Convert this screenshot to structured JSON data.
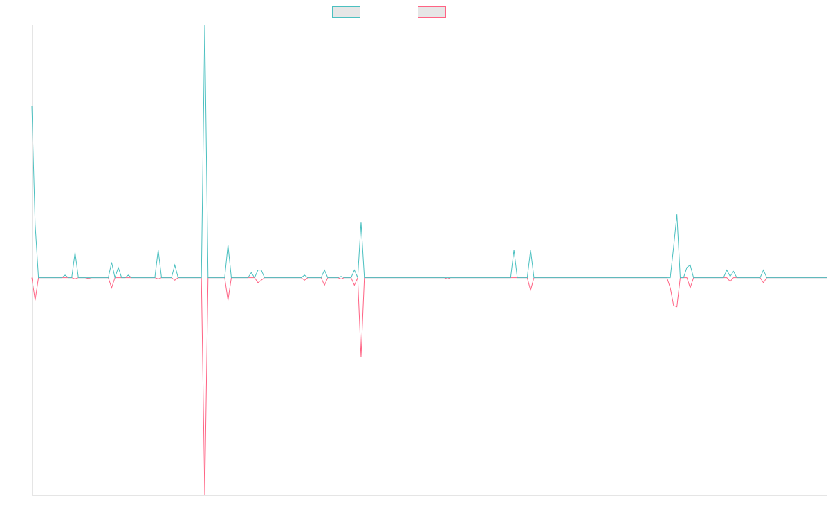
{
  "chart_data": {
    "type": "line",
    "ylim": [
      -86,
      100
    ],
    "series": [
      {
        "color": "#4bc0c0",
        "values": [
          68,
          21,
          0,
          0,
          0,
          0,
          0,
          0,
          0,
          0,
          1,
          0,
          0,
          10,
          0,
          0,
          0,
          0,
          0,
          0,
          0,
          0,
          0,
          0,
          6,
          0,
          4,
          0,
          0,
          1,
          0,
          0,
          0,
          0,
          0,
          0,
          0,
          0,
          11,
          0,
          0,
          0,
          0,
          5,
          0,
          0,
          0,
          0,
          0,
          0,
          0,
          0,
          100,
          0,
          0,
          0,
          0,
          0,
          0,
          13,
          0,
          0,
          0,
          0,
          0,
          0,
          2,
          0,
          3,
          3,
          0,
          0,
          0,
          0,
          0,
          0,
          0,
          0,
          0,
          0,
          0,
          0,
          1,
          0,
          0,
          0,
          0,
          0,
          3,
          0,
          0,
          0,
          0,
          0.5,
          0,
          0,
          0,
          3,
          0,
          22,
          0,
          0,
          0,
          0,
          0,
          0,
          0,
          0,
          0,
          0,
          0,
          0,
          0,
          0,
          0,
          0,
          0,
          0,
          0,
          0,
          0,
          0,
          0,
          0,
          0,
          0,
          0,
          0,
          0,
          0,
          0,
          0,
          0,
          0,
          0,
          0,
          0,
          0,
          0,
          0,
          0,
          0,
          0,
          0,
          0,
          11,
          0,
          0,
          0,
          0,
          11,
          0,
          0,
          0,
          0,
          0,
          0,
          0,
          0,
          0,
          0,
          0,
          0,
          0,
          0,
          0,
          0,
          0,
          0,
          0,
          0,
          0,
          0,
          0,
          0,
          0,
          0,
          0,
          0,
          0,
          0,
          0,
          0,
          0,
          0,
          0,
          0,
          0,
          0,
          0,
          0,
          0,
          0,
          12,
          25,
          0,
          0,
          4,
          5,
          0,
          0,
          0,
          0,
          0,
          0,
          0,
          0,
          0,
          0,
          3,
          0.5,
          2.5,
          0,
          0,
          0,
          0,
          0,
          0,
          0,
          0,
          3,
          0,
          0,
          0,
          0,
          0,
          0,
          0,
          0,
          0,
          0,
          0,
          0,
          0,
          0,
          0,
          0,
          0,
          0,
          0
        ]
      },
      {
        "color": "#ff6384",
        "values": [
          0,
          -9,
          0,
          0,
          0,
          0,
          0,
          0,
          0,
          0,
          0,
          0,
          0,
          -0.5,
          0,
          0,
          0,
          -0.3,
          0,
          0,
          0,
          0,
          0,
          0,
          -4,
          0,
          0,
          0,
          0,
          0,
          0,
          0,
          0,
          0,
          0,
          0,
          0,
          0,
          -0.5,
          0,
          0,
          0,
          0,
          -1,
          0,
          0,
          0,
          0,
          0,
          0,
          0,
          0,
          -86,
          0,
          0,
          0,
          0,
          0,
          0,
          -9,
          0,
          0,
          0,
          0,
          0,
          0,
          0,
          0,
          -2,
          -1,
          0,
          0,
          0,
          0,
          0,
          0,
          0,
          0,
          0,
          0,
          0,
          0,
          -1,
          0,
          0,
          0,
          0,
          0,
          -3,
          0,
          0,
          0,
          0,
          -0.5,
          0,
          0,
          0,
          -3,
          0,
          -31.5,
          0,
          0,
          0,
          0,
          0,
          0,
          0,
          0,
          0,
          0,
          0,
          0,
          0,
          0,
          0,
          0,
          0,
          0,
          0,
          0,
          0,
          0,
          0,
          0,
          0,
          -0.5,
          0,
          0,
          0,
          0,
          0,
          0,
          0,
          0,
          0,
          0,
          0,
          0,
          0,
          0,
          0,
          0,
          0,
          0,
          0,
          0,
          0,
          0,
          0,
          0,
          -5,
          0,
          0,
          0,
          0,
          0,
          0,
          0,
          0,
          0,
          0,
          0,
          0,
          0,
          0,
          0,
          0,
          0,
          0,
          0,
          0,
          0,
          0,
          0,
          0,
          0,
          0,
          0,
          0,
          0,
          0,
          0,
          0,
          0,
          0,
          0,
          0,
          0,
          0,
          0,
          0,
          0,
          -4,
          -11,
          -11.5,
          0,
          0,
          0,
          -4,
          0,
          0,
          0,
          0,
          0,
          0,
          0,
          0,
          0,
          0,
          0,
          -1.5,
          0,
          0,
          0,
          0,
          0,
          0,
          0,
          0,
          0,
          -2,
          0,
          0,
          0,
          0,
          0,
          0,
          0,
          0,
          0,
          0,
          0,
          0,
          0,
          0,
          0,
          0,
          0,
          0,
          0
        ]
      }
    ]
  }
}
